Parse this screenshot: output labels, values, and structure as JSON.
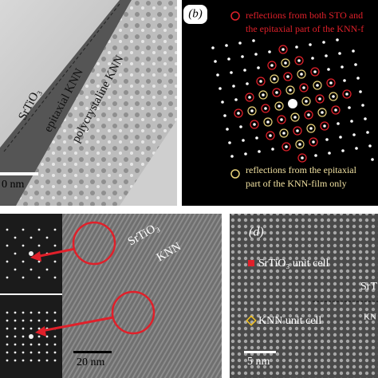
{
  "panels": [
    {
      "texts": [
        "SrTiO₃",
        "epitaxial KNN",
        "polycrystaline KNN"
      ],
      "scale_bar": "0 nm"
    },
    {
      "label": "(b)",
      "legend": [
        "reflections from both STO and",
        "the epitaxial part of the KNN-f",
        "reflections from the epitaxial",
        "part of the KNN-film only"
      ]
    },
    {
      "texts": [
        "SrTiO₃",
        "KNN"
      ],
      "scale_bar": "20 nm"
    },
    {
      "label": "(d)",
      "texts": [
        "SrTiO₃ unit cell",
        "KNN unit cell",
        "SrT",
        "KN"
      ],
      "scale_bar": "5 nm"
    }
  ]
}
